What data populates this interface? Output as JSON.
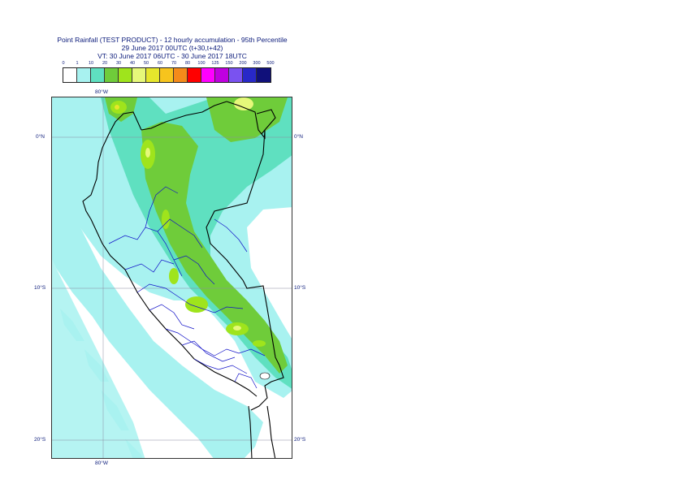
{
  "title": {
    "line1": "Point Rainfall (TEST PRODUCT) - 12 hourly accumulation - 95th Percentile",
    "line2": "29 June 2017 00UTC (t+30,t+42)",
    "line3": "VT: 30 June 2017 06UTC - 30 June 2017 18UTC"
  },
  "legend": {
    "thresholds": [
      "0",
      "1",
      "10",
      "20",
      "30",
      "40",
      "50",
      "60",
      "70",
      "80",
      "100",
      "125",
      "150",
      "200",
      "300",
      "500"
    ],
    "colors": [
      "#ffffff",
      "#a8f2f0",
      "#5fe0c0",
      "#6fcc3a",
      "#9fe41c",
      "#e6f87a",
      "#e6e62c",
      "#f7c41d",
      "#f58a1a",
      "#ff0000",
      "#ff00ff",
      "#c000e0",
      "#7a52f0",
      "#2828c8",
      "#10107a"
    ]
  },
  "map": {
    "lat_labels": [
      "0°N",
      "10°S",
      "20°S"
    ],
    "lon_label_top": "80°W",
    "lon_label_bottom": "80°W"
  }
}
